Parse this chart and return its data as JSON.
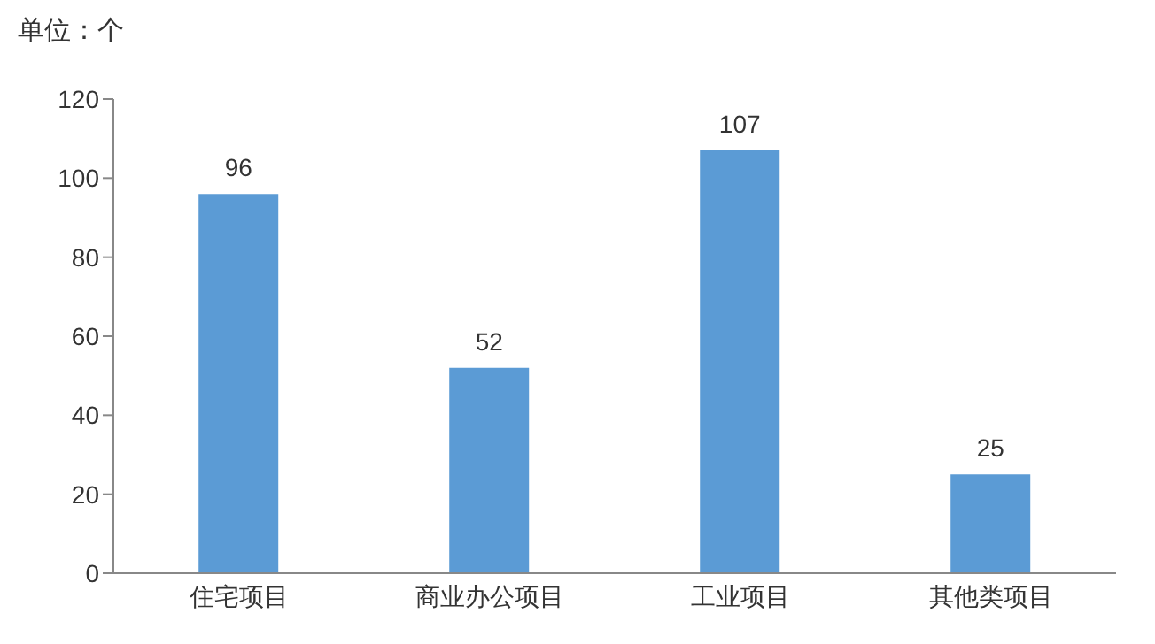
{
  "chart_data": {
    "type": "bar",
    "ylabel": "单位：个",
    "categories": [
      "住宅项目",
      "商业办公项目",
      "工业项目",
      "其他类项目"
    ],
    "series": [
      {
        "color": "#5b9bd5",
        "values": [
          96,
          52,
          107,
          25
        ]
      }
    ],
    "ylim": [
      0,
      120
    ],
    "yticks": [
      0,
      20,
      40,
      60,
      80,
      100,
      120
    ],
    "data_labels": true,
    "grid": false
  }
}
